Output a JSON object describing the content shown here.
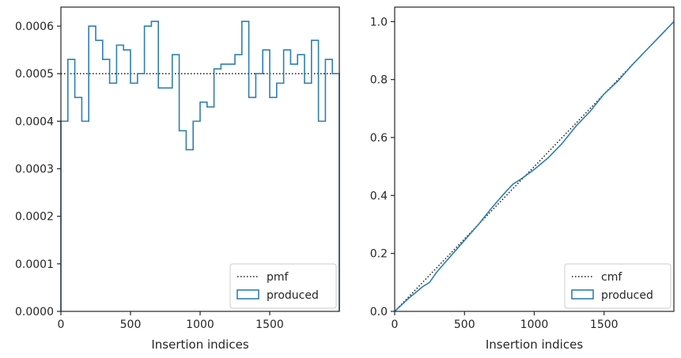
{
  "colors": {
    "step": "#2e7fb3",
    "reference": "#1a1a1a",
    "axes": "#262626",
    "legend_border": "#cccccc",
    "background": "#ffffff"
  },
  "chart_data": [
    {
      "type": "histogram-step",
      "xlabel": "Insertion indices",
      "ylabel": "",
      "xlim": [
        0,
        2000
      ],
      "ylim": [
        0,
        0.00064
      ],
      "x_ticks": [
        0,
        500,
        1000,
        1500
      ],
      "x_tick_labels": [
        "0",
        "500",
        "1000",
        "1500"
      ],
      "y_ticks": [
        0,
        0.0001,
        0.0002,
        0.0003,
        0.0004,
        0.0005,
        0.0006
      ],
      "y_tick_labels": [
        "0.0000",
        "0.0001",
        "0.0002",
        "0.0003",
        "0.0004",
        "0.0005",
        "0.0006"
      ],
      "legend_position": "bottom-right",
      "legend": [
        "pmf",
        "produced"
      ],
      "reference": {
        "name": "pmf",
        "style": "dotted",
        "y": 0.0005
      },
      "bin_width": 50,
      "bin_edges_start": 0,
      "values": [
        0.0004,
        0.00053,
        0.00045,
        0.0004,
        0.0006,
        0.00057,
        0.00053,
        0.00048,
        0.00056,
        0.00055,
        0.00048,
        0.0005,
        0.0006,
        0.00061,
        0.00047,
        0.00047,
        0.00054,
        0.00038,
        0.00034,
        0.0004,
        0.00044,
        0.00043,
        0.00051,
        0.00052,
        0.00052,
        0.00054,
        0.00061,
        0.00045,
        0.0005,
        0.00055,
        0.00045,
        0.00048,
        0.00055,
        0.00052,
        0.00054,
        0.00048,
        0.00057,
        0.0004,
        0.00053,
        0.0005
      ]
    },
    {
      "type": "cumulative-step",
      "xlabel": "Insertion indices",
      "ylabel": "",
      "xlim": [
        0,
        2000
      ],
      "ylim": [
        0,
        1.05
      ],
      "x_ticks": [
        0,
        500,
        1000,
        1500
      ],
      "x_tick_labels": [
        "0",
        "500",
        "1000",
        "1500"
      ],
      "y_ticks": [
        0,
        0.2,
        0.4,
        0.6,
        0.8,
        1.0
      ],
      "y_tick_labels": [
        "0.0",
        "0.2",
        "0.4",
        "0.6",
        "0.8",
        "1.0"
      ],
      "legend_position": "bottom-right",
      "legend": [
        "cmf",
        "produced"
      ],
      "reference": {
        "name": "cmf",
        "style": "dotted",
        "from": [
          0,
          0
        ],
        "to": [
          2000,
          1.0
        ]
      },
      "x": [
        0,
        100,
        200,
        250,
        300,
        400,
        500,
        600,
        700,
        800,
        850,
        900,
        1000,
        1100,
        1200,
        1300,
        1400,
        1500,
        1600,
        1700,
        1800,
        1900,
        2000
      ],
      "values": [
        0,
        0.045,
        0.085,
        0.1,
        0.135,
        0.19,
        0.245,
        0.3,
        0.36,
        0.415,
        0.44,
        0.455,
        0.49,
        0.53,
        0.58,
        0.64,
        0.69,
        0.75,
        0.795,
        0.85,
        0.9,
        0.95,
        1.0
      ]
    }
  ]
}
